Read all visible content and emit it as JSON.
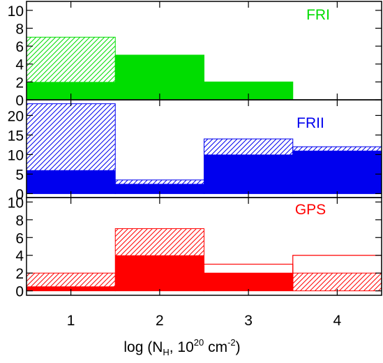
{
  "chart_data": {
    "type": "bar",
    "xlabel": "log (N_H, 10^20 cm^-2)",
    "xlabel_parts": {
      "prefix": "log (N",
      "sub": "H",
      "middle": ", 10",
      "sup1": "20",
      "unit": " cm",
      "sup2": "-2",
      "suffix": ")"
    },
    "x_tick_labels": [
      "1",
      "2",
      "3",
      "4"
    ],
    "x_bins": [
      [
        0.5,
        1.5
      ],
      [
        1.5,
        2.5
      ],
      [
        2.5,
        3.5
      ],
      [
        3.5,
        4.5
      ]
    ],
    "xlim": [
      0.5,
      4.5
    ],
    "panels": [
      {
        "label": "FRI",
        "color": "#00dd00",
        "ylim": [
          0,
          11
        ],
        "yticks": [
          0,
          2,
          4,
          6,
          8,
          10
        ],
        "series": [
          {
            "fill": "solid",
            "values": [
              2,
              5,
              2,
              0
            ]
          },
          {
            "fill": "hatched",
            "values": [
              7,
              5,
              2,
              0
            ]
          }
        ]
      },
      {
        "label": "FRII",
        "color": "#0000ee",
        "ylim": [
          -1,
          24
        ],
        "yticks": [
          0,
          5,
          10,
          15,
          20
        ],
        "series": [
          {
            "fill": "solid",
            "values": [
              6,
              2.5,
              10,
              11
            ]
          },
          {
            "fill": "hatched",
            "values": [
              23,
              3.5,
              14,
              12
            ]
          }
        ]
      },
      {
        "label": "GPS",
        "color": "#ff0000",
        "ylim": [
          -0.5,
          10.5
        ],
        "yticks": [
          0,
          2,
          4,
          6,
          8,
          10
        ],
        "series": [
          {
            "fill": "solid",
            "values": [
              0.5,
              4,
              2,
              0
            ]
          },
          {
            "fill": "hatched",
            "values": [
              2,
              7,
              2,
              2
            ]
          },
          {
            "fill": "outline",
            "values": [
              0,
              0,
              3,
              4
            ]
          }
        ]
      }
    ]
  }
}
